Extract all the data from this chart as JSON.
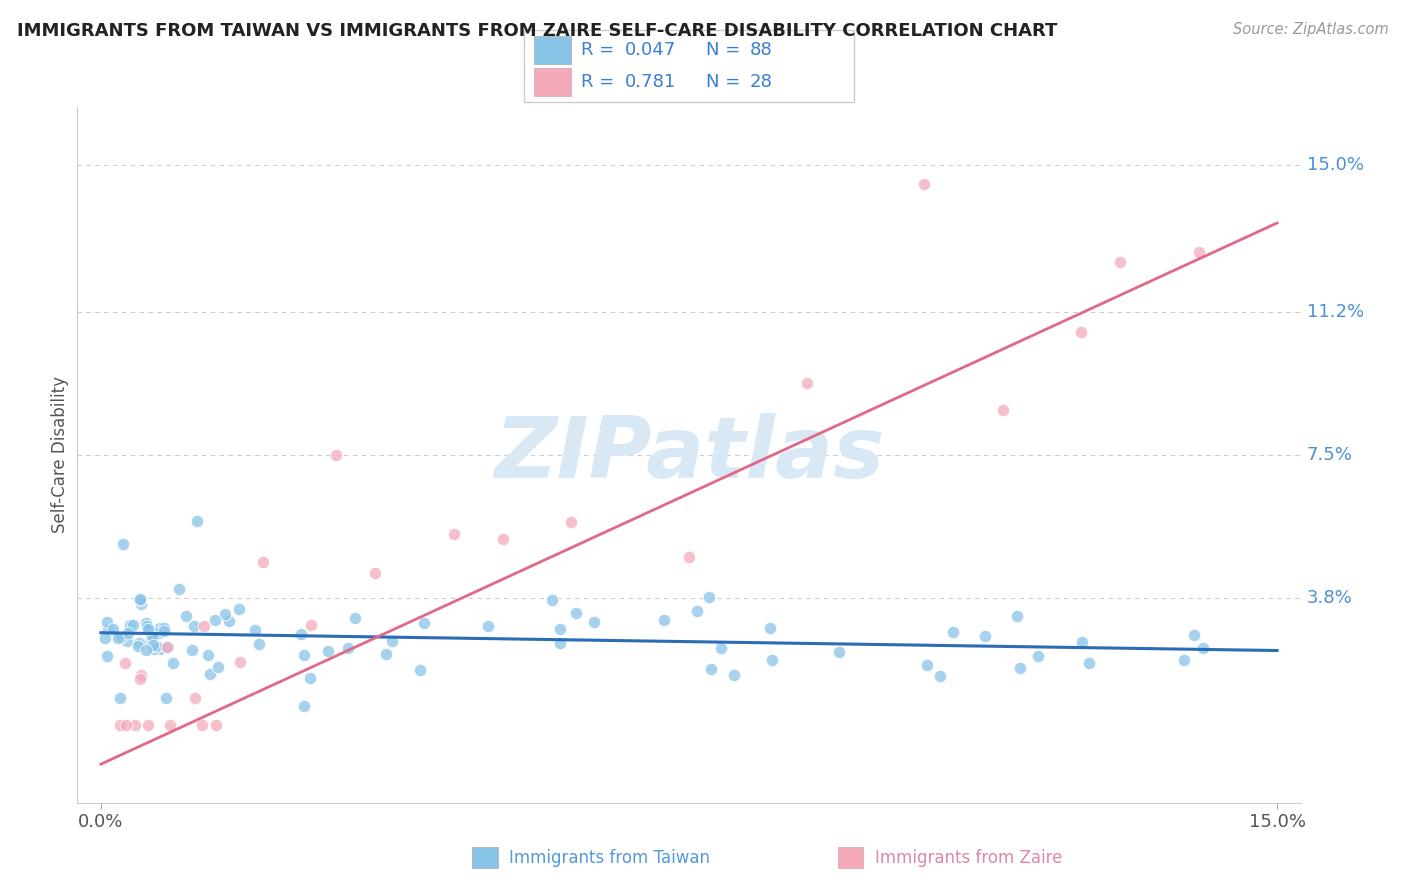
{
  "title": "IMMIGRANTS FROM TAIWAN VS IMMIGRANTS FROM ZAIRE SELF-CARE DISABILITY CORRELATION CHART",
  "source": "Source: ZipAtlas.com",
  "ylabel": "Self-Care Disability",
  "xlim": [
    -0.3,
    15.3
  ],
  "ylim": [
    -1.5,
    16.5
  ],
  "yticks": [
    3.8,
    7.5,
    11.2,
    15.0
  ],
  "ytick_labels": [
    "3.8%",
    "7.5%",
    "11.2%",
    "15.0%"
  ],
  "taiwan_color": "#88c4e8",
  "zaire_color": "#f4aabb",
  "taiwan_line_color": "#2b6cb5",
  "zaire_line_color": "#e06888",
  "legend_blue": "#3a7fd5",
  "taiwan_R": "0.047",
  "taiwan_N": "88",
  "zaire_R": "0.781",
  "zaire_N": "28",
  "watermark": "ZIPatlas",
  "watermark_color": "#d8e8f5",
  "title_color": "#222222",
  "source_color": "#999999",
  "ylabel_color": "#555555",
  "ytick_color": "#4a90d9",
  "grid_color": "#cccccc",
  "taiwan_label_color": "#5599dd",
  "zaire_label_color": "#dd88aa"
}
